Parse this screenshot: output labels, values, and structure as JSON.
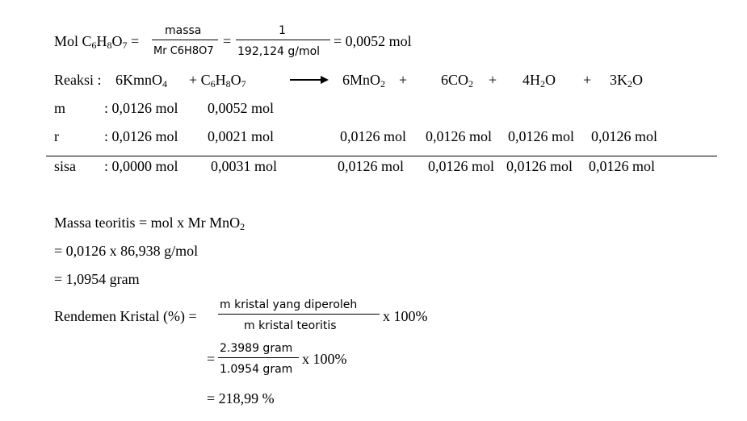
{
  "mol_calc": {
    "prefix": "Mol C",
    "sub6": "6",
    "h": "H",
    "sub8": "8",
    "o": "O",
    "sub7": "7",
    "eq1": "=",
    "frac1_num": "massa",
    "frac1_den": "Mr C6H8O7",
    "eq2": "=",
    "frac2_num": "1",
    "frac2_den": "192,124 g/mol",
    "result": "= 0,0052 mol"
  },
  "reaction": {
    "label": "Reaksi :",
    "kmno4_a": "6KmnO",
    "kmno4_sub": "4",
    "plus1": "+ C",
    "c_sub": "6",
    "h": "H",
    "h_sub": "8",
    "o": "O",
    "o_sub": "7",
    "mno2_a": "6MnO",
    "mno2_sub": "2",
    "plus2": "+",
    "co2_a": "6CO",
    "co2_sub": "2",
    "plus3": "+",
    "h2o_a": "4H",
    "h2o_sub": "2",
    "h2o_b": "O",
    "plus4": "+",
    "k2o_a": "3K",
    "k2o_sub": "2",
    "k2o_b": "O"
  },
  "table": {
    "m": {
      "label": "m",
      "c1": ": 0,0126 mol",
      "c2": "0,0052 mol"
    },
    "r": {
      "label": "r",
      "c1": ": 0,0126 mol",
      "c2": "0,0021 mol",
      "p1": "0,0126 mol",
      "p2": "0,0126 mol",
      "p3": "0,0126 mol",
      "p4": "0,0126 mol"
    },
    "sisa": {
      "label": "sisa",
      "c1": ": 0,0000 mol",
      "c2": "0,0031 mol",
      "p1": "0,0126 mol",
      "p2": "0,0126 mol",
      "p3": "0,0126 mol",
      "p4": "0,0126 mol"
    }
  },
  "massa": {
    "line1_a": "Massa teoritis = mol x Mr MnO",
    "line1_sub": "2",
    "line2": "= 0,0126 x 86,938 g/mol",
    "line3": "= 1,0954 gram"
  },
  "rendemen": {
    "label": "Rendemen Kristal (%) =",
    "frac1_num": "m kristal yang diperoleh",
    "frac1_den": "m kristal teoritis",
    "x100_1": "x 100%",
    "eq": "=",
    "frac2_num": "2.3989 gram",
    "frac2_den": "1.0954 gram",
    "x100_2": "x 100%",
    "result": "= 218,99 %"
  }
}
